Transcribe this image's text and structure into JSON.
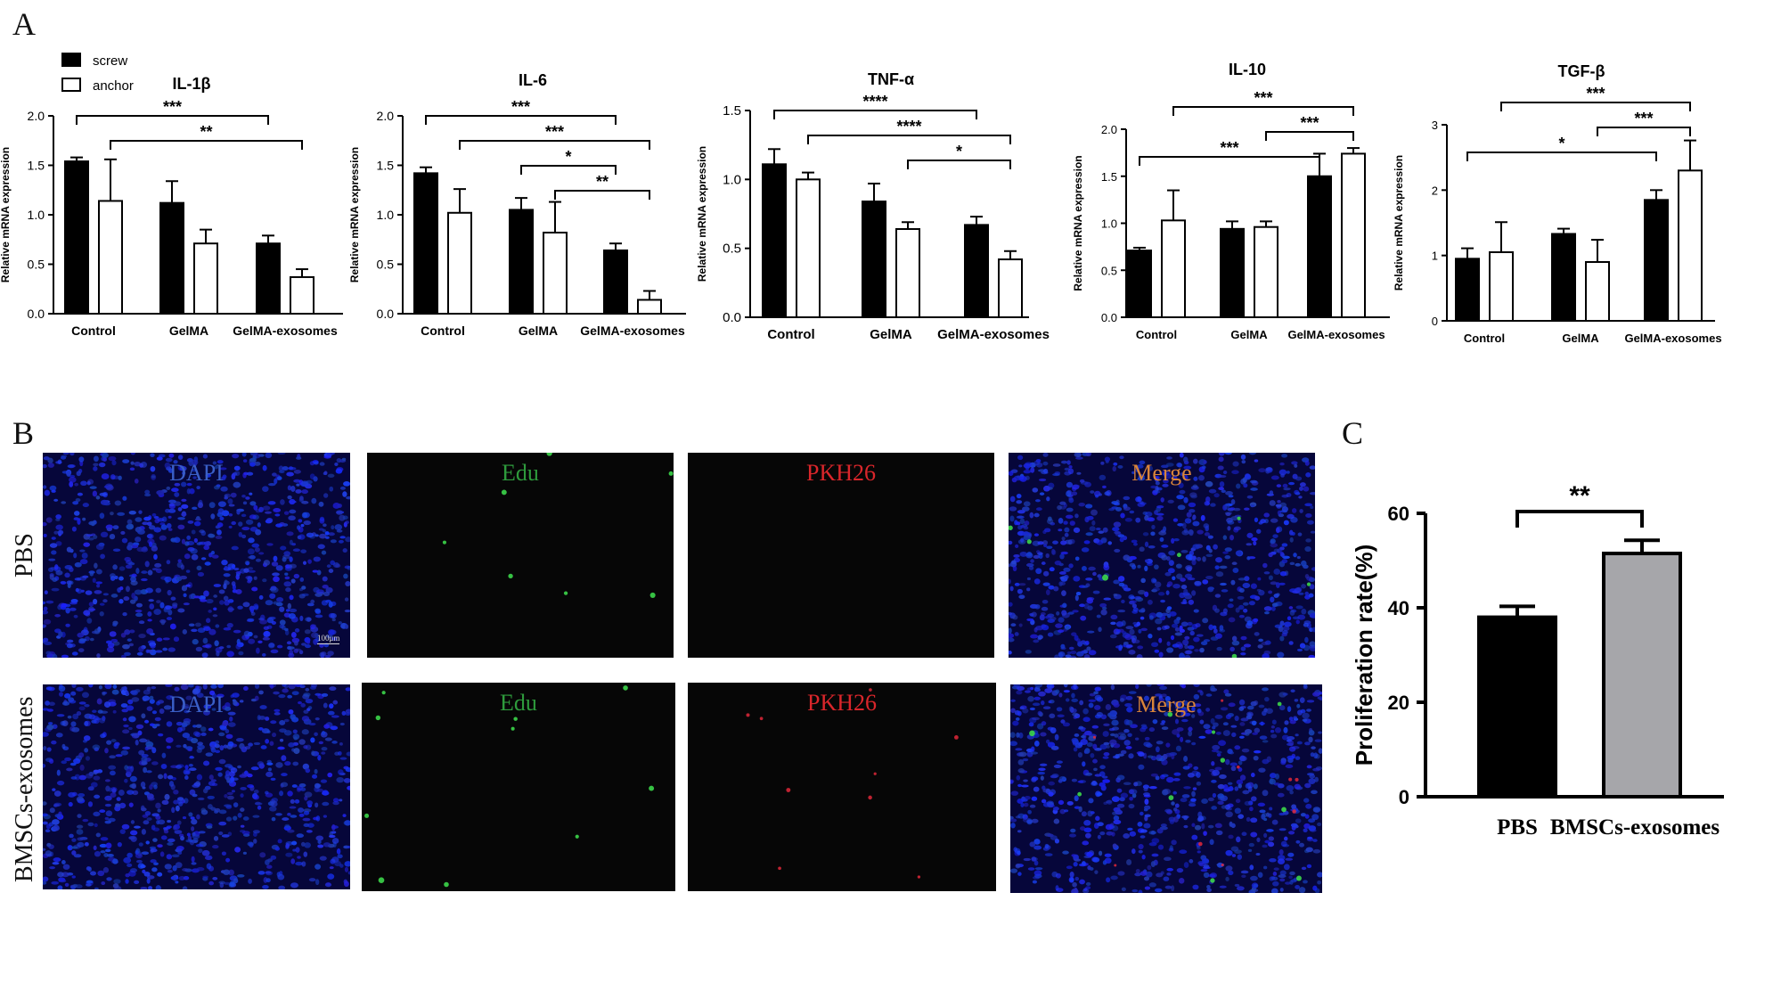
{
  "panels": {
    "a": "A",
    "b": "B",
    "c": "C"
  },
  "legend": [
    {
      "label": "screw",
      "fill": "#000000"
    },
    {
      "label": "anchor",
      "fill": "#ffffff"
    }
  ],
  "chart_data": [
    {
      "type": "bar",
      "title": "IL-1β",
      "ylabel": "Relative mRNA expression",
      "categories": [
        "Control",
        "GelMA",
        "GelMA-exosomes"
      ],
      "ylim": [
        0,
        2.0
      ],
      "yticks": [
        "0.0",
        "0.5",
        "1.0",
        "1.5",
        "2.0"
      ],
      "series": [
        {
          "name": "screw",
          "values": [
            1.54,
            1.12,
            0.71
          ],
          "errors": [
            0.04,
            0.22,
            0.08
          ]
        },
        {
          "name": "anchor",
          "values": [
            1.14,
            0.71,
            0.37
          ],
          "errors": [
            0.42,
            0.14,
            0.08
          ]
        }
      ],
      "annotations": [
        {
          "from": [
            0,
            0
          ],
          "to": [
            2,
            0
          ],
          "label": "***"
        },
        {
          "from": [
            0,
            1
          ],
          "to": [
            2,
            1
          ],
          "label": "**"
        }
      ]
    },
    {
      "type": "bar",
      "title": "IL-6",
      "ylabel": "Relative mRNA expression",
      "categories": [
        "Control",
        "GelMA",
        "GelMA-exosomes"
      ],
      "ylim": [
        0,
        2.0
      ],
      "yticks": [
        "0.0",
        "0.5",
        "1.0",
        "1.5",
        "2.0"
      ],
      "series": [
        {
          "name": "screw",
          "values": [
            1.42,
            1.05,
            0.64
          ],
          "errors": [
            0.06,
            0.12,
            0.07
          ]
        },
        {
          "name": "anchor",
          "values": [
            1.02,
            0.82,
            0.14
          ],
          "errors": [
            0.24,
            0.31,
            0.09
          ]
        }
      ],
      "annotations": [
        {
          "from": [
            0,
            0
          ],
          "to": [
            2,
            0
          ],
          "label": "***"
        },
        {
          "from": [
            0,
            1
          ],
          "to": [
            2,
            1
          ],
          "label": "***"
        },
        {
          "from": [
            1,
            0
          ],
          "to": [
            2,
            0
          ],
          "label": "*"
        },
        {
          "from": [
            1,
            1
          ],
          "to": [
            2,
            1
          ],
          "label": "**"
        }
      ]
    },
    {
      "type": "bar",
      "title": "TNF-α",
      "ylabel": "Relative mRNA expression",
      "categories": [
        "Control",
        "GelMA",
        "GelMA-exosomes"
      ],
      "ylim": [
        0,
        1.5
      ],
      "yticks": [
        "0.0",
        "0.5",
        "1.0",
        "1.5"
      ],
      "series": [
        {
          "name": "screw",
          "values": [
            1.11,
            0.84,
            0.67
          ],
          "errors": [
            0.11,
            0.13,
            0.06
          ]
        },
        {
          "name": "anchor",
          "values": [
            1.0,
            0.64,
            0.42
          ],
          "errors": [
            0.05,
            0.05,
            0.06
          ]
        }
      ],
      "annotations": [
        {
          "from": [
            0,
            0
          ],
          "to": [
            2,
            0
          ],
          "label": "****"
        },
        {
          "from": [
            0,
            1
          ],
          "to": [
            2,
            1
          ],
          "label": "****"
        },
        {
          "from": [
            1,
            1
          ],
          "to": [
            2,
            1
          ],
          "label": "*"
        }
      ]
    },
    {
      "type": "bar",
      "title": "IL-10",
      "ylabel": "Relative mRNA expression",
      "categories": [
        "Control",
        "GelMA",
        "GelMA-exosomes"
      ],
      "ylim": [
        0,
        2.0
      ],
      "yticks": [
        "0.0",
        "0.5",
        "1.0",
        "1.5",
        "2.0"
      ],
      "series": [
        {
          "name": "screw",
          "values": [
            0.71,
            0.94,
            1.5
          ],
          "errors": [
            0.03,
            0.08,
            0.24
          ]
        },
        {
          "name": "anchor",
          "values": [
            1.03,
            0.96,
            1.74
          ],
          "errors": [
            0.32,
            0.06,
            0.06
          ]
        }
      ],
      "annotations": [
        {
          "from": [
            0,
            1
          ],
          "to": [
            2,
            1
          ],
          "label": "***"
        },
        {
          "from": [
            1,
            1
          ],
          "to": [
            2,
            1
          ],
          "label": "***"
        },
        {
          "from": [
            0,
            0
          ],
          "to": [
            2,
            0
          ],
          "label": "***"
        }
      ]
    },
    {
      "type": "bar",
      "title": "TGF-β",
      "ylabel": "Relative mRNA expression",
      "categories": [
        "Control",
        "GelMA",
        "GelMA-exosomes"
      ],
      "ylim": [
        0,
        3
      ],
      "yticks": [
        "0",
        "1",
        "2",
        "3"
      ],
      "series": [
        {
          "name": "screw",
          "values": [
            0.95,
            1.33,
            1.85
          ],
          "errors": [
            0.16,
            0.08,
            0.15
          ]
        },
        {
          "name": "anchor",
          "values": [
            1.05,
            0.9,
            2.3
          ],
          "errors": [
            0.46,
            0.34,
            0.46
          ]
        }
      ],
      "annotations": [
        {
          "from": [
            0,
            1
          ],
          "to": [
            2,
            1
          ],
          "label": "***"
        },
        {
          "from": [
            1,
            1
          ],
          "to": [
            2,
            1
          ],
          "label": "***"
        },
        {
          "from": [
            0,
            0
          ],
          "to": [
            2,
            0
          ],
          "label": "*"
        }
      ]
    },
    {
      "type": "bar",
      "ylabel": "Proliferation rate(%)",
      "categories": [
        "PBS",
        "BMSCs-exosomes"
      ],
      "values": [
        38,
        51.5
      ],
      "errors": [
        2.3,
        2.8
      ],
      "colors": [
        "#000000",
        "#a6a6aa"
      ],
      "ylim": [
        0,
        60
      ],
      "yticks": [
        "0",
        "20",
        "40",
        "60"
      ],
      "significance": "**"
    }
  ],
  "microscopy": {
    "rows": [
      "PBS",
      "BMSCs-exosomes"
    ],
    "channels": [
      {
        "label": "DAPI",
        "color": "#3a5fc8"
      },
      {
        "label": "Edu",
        "color": "#2e9a3c"
      },
      {
        "label": "PKH26",
        "color": "#d9262b"
      },
      {
        "label": "Merge",
        "color": "#d9843a"
      }
    ],
    "scale_bar": "100μm"
  }
}
